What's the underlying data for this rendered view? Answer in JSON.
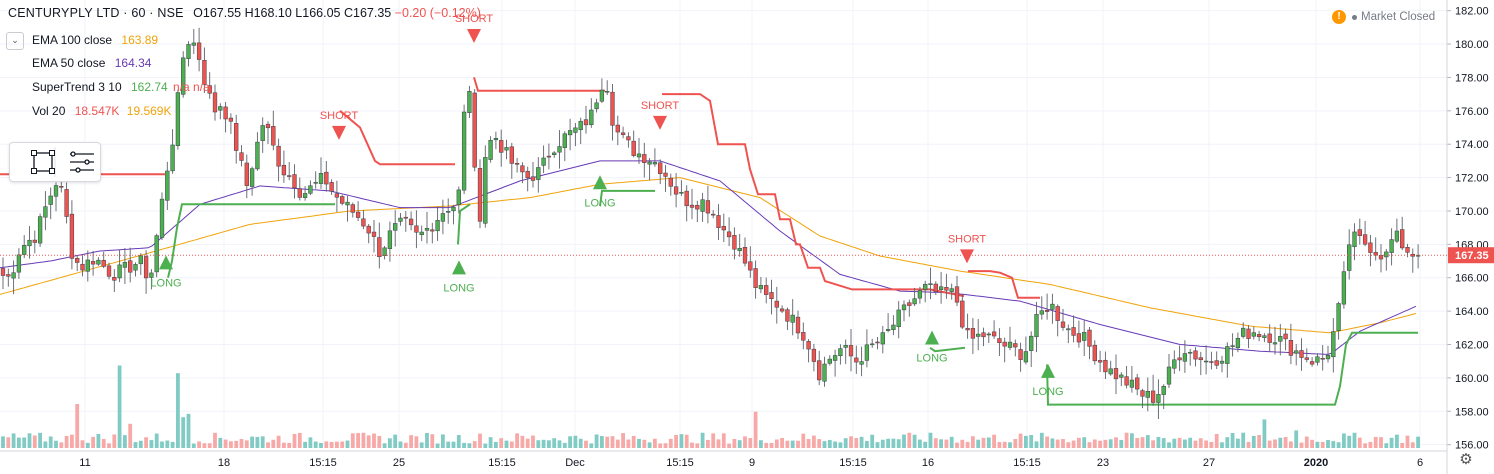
{
  "header": {
    "symbol": "CENTURYPLY LTD · 60 · NSE",
    "ohlc": "O167.55 H168.10 L166.05 C167.35",
    "change": "−0.20 (−0.12%)"
  },
  "indicators": [
    {
      "name": "EMA 100 close",
      "value": "163.89",
      "value2": "",
      "color": "#f0a30a"
    },
    {
      "name": "EMA 50 close",
      "value": "164.34",
      "value2": "",
      "color": "#673ab7"
    },
    {
      "name": "SuperTrend 3 10",
      "value": "162.74",
      "value2": "n/a n/a",
      "color": "#4caf50"
    },
    {
      "name": "Vol 20",
      "value": "18.547K",
      "value2": "19.569K",
      "color": "#ef5350"
    }
  ],
  "market_status": "Market Closed",
  "colors": {
    "up": "#26a69a",
    "up_body": "#4caf50",
    "down": "#ef5350",
    "ema100": "#f0a30a",
    "ema50": "#673ab7",
    "st_up": "#4caf50",
    "st_down": "#ef5350"
  },
  "icons": {
    "toggle": "chevron-down-icon",
    "rect_tool": "rectangle-icon",
    "list_tool": "list-icon",
    "status": "warning-icon",
    "settings": "gear-icon"
  },
  "chart_data": {
    "type": "candlestick",
    "title": "CENTURYPLY LTD · 60 · NSE",
    "ylim": [
      155.8,
      182.4
    ],
    "y_ticks": [
      "182.00",
      "180.00",
      "178.00",
      "176.00",
      "174.00",
      "172.00",
      "170.00",
      "168.00",
      "166.00",
      "164.00",
      "162.00",
      "160.00",
      "158.00",
      "156.00"
    ],
    "last_price": "167.35",
    "x_ticks": [
      "11",
      "18",
      "15:15",
      "25",
      "15:15",
      "Dec",
      "15:15",
      "9",
      "15:15",
      "16",
      "15:15",
      "23",
      "27",
      "2020",
      "6"
    ],
    "anchors": [
      [
        0,
        166.2
      ],
      [
        10,
        166.0
      ],
      [
        20,
        167.8
      ],
      [
        35,
        168.5
      ],
      [
        48,
        170.6
      ],
      [
        58,
        172.0
      ],
      [
        64,
        170.5
      ],
      [
        72,
        167.5
      ],
      [
        80,
        166.6
      ],
      [
        95,
        167.2
      ],
      [
        112,
        166.2
      ],
      [
        125,
        166.5
      ],
      [
        140,
        167.0
      ],
      [
        150,
        165.8
      ],
      [
        158,
        169.0
      ],
      [
        167,
        172.5
      ],
      [
        175,
        175.0
      ],
      [
        182,
        179.0
      ],
      [
        190,
        180.5
      ],
      [
        198,
        179.5
      ],
      [
        206,
        177.5
      ],
      [
        214,
        176.0
      ],
      [
        222,
        176.5
      ],
      [
        232,
        174.8
      ],
      [
        240,
        173.0
      ],
      [
        247,
        171.5
      ],
      [
        255,
        173.5
      ],
      [
        264,
        175.5
      ],
      [
        272,
        174.0
      ],
      [
        282,
        172.5
      ],
      [
        292,
        172.0
      ],
      [
        302,
        171.0
      ],
      [
        314,
        171.5
      ],
      [
        324,
        172.0
      ],
      [
        334,
        171.0
      ],
      [
        344,
        170.4
      ],
      [
        356,
        169.8
      ],
      [
        368,
        169.0
      ],
      [
        380,
        167.5
      ],
      [
        392,
        168.8
      ],
      [
        404,
        169.3
      ],
      [
        418,
        168.4
      ],
      [
        432,
        169.2
      ],
      [
        446,
        170.2
      ],
      [
        458,
        170.4
      ],
      [
        465,
        176.5
      ],
      [
        470,
        177.5
      ],
      [
        478,
        168.5
      ],
      [
        486,
        173.8
      ],
      [
        495,
        174.5
      ],
      [
        505,
        173.5
      ],
      [
        515,
        172.6
      ],
      [
        528,
        172.0
      ],
      [
        540,
        172.4
      ],
      [
        552,
        173.8
      ],
      [
        566,
        174.5
      ],
      [
        580,
        175.0
      ],
      [
        592,
        175.8
      ],
      [
        600,
        177.5
      ],
      [
        606,
        178.0
      ],
      [
        614,
        175.0
      ],
      [
        624,
        174.2
      ],
      [
        636,
        173.5
      ],
      [
        648,
        173.2
      ],
      [
        658,
        172.8
      ],
      [
        668,
        172.0
      ],
      [
        678,
        171.0
      ],
      [
        690,
        170.5
      ],
      [
        702,
        170.6
      ],
      [
        712,
        170.0
      ],
      [
        722,
        169.0
      ],
      [
        734,
        168.2
      ],
      [
        746,
        166.8
      ],
      [
        756,
        165.5
      ],
      [
        766,
        164.8
      ],
      [
        778,
        164.4
      ],
      [
        790,
        163.6
      ],
      [
        802,
        162.8
      ],
      [
        812,
        161.6
      ],
      [
        818,
        160.2
      ],
      [
        830,
        161.2
      ],
      [
        842,
        161.8
      ],
      [
        856,
        161.0
      ],
      [
        870,
        161.8
      ],
      [
        884,
        162.4
      ],
      [
        898,
        163.6
      ],
      [
        912,
        164.6
      ],
      [
        926,
        165.4
      ],
      [
        940,
        165.0
      ],
      [
        950,
        165.2
      ],
      [
        958,
        164.5
      ],
      [
        966,
        162.5
      ],
      [
        972,
        162.3
      ],
      [
        982,
        162.6
      ],
      [
        996,
        162.2
      ],
      [
        1010,
        161.8
      ],
      [
        1024,
        161.4
      ],
      [
        1038,
        163.6
      ],
      [
        1050,
        164.5
      ],
      [
        1060,
        163.5
      ],
      [
        1070,
        162.8
      ],
      [
        1082,
        162.5
      ],
      [
        1094,
        161.5
      ],
      [
        1106,
        160.6
      ],
      [
        1118,
        160.1
      ],
      [
        1130,
        159.6
      ],
      [
        1142,
        159.0
      ],
      [
        1154,
        158.8
      ],
      [
        1164,
        159.6
      ],
      [
        1174,
        161.0
      ],
      [
        1184,
        161.8
      ],
      [
        1194,
        161.4
      ],
      [
        1206,
        161.0
      ],
      [
        1218,
        161.2
      ],
      [
        1230,
        161.8
      ],
      [
        1242,
        162.6
      ],
      [
        1254,
        162.8
      ],
      [
        1266,
        162.6
      ],
      [
        1278,
        162.4
      ],
      [
        1290,
        161.8
      ],
      [
        1302,
        161.4
      ],
      [
        1314,
        161.0
      ],
      [
        1326,
        161.2
      ],
      [
        1336,
        163.2
      ],
      [
        1344,
        166.0
      ],
      [
        1350,
        168.4
      ],
      [
        1358,
        168.3
      ],
      [
        1368,
        168.0
      ],
      [
        1376,
        167.6
      ],
      [
        1386,
        167.3
      ],
      [
        1394,
        168.6
      ],
      [
        1402,
        168.0
      ],
      [
        1410,
        167.5
      ],
      [
        1418,
        167.35
      ]
    ],
    "ema100_anchors": [
      [
        0,
        165.0
      ],
      [
        60,
        166.0
      ],
      [
        150,
        167.5
      ],
      [
        250,
        169.2
      ],
      [
        350,
        170.0
      ],
      [
        450,
        170.3
      ],
      [
        530,
        170.8
      ],
      [
        600,
        171.6
      ],
      [
        680,
        172.0
      ],
      [
        760,
        170.8
      ],
      [
        820,
        168.5
      ],
      [
        880,
        167.3
      ],
      [
        960,
        166.4
      ],
      [
        1050,
        165.6
      ],
      [
        1150,
        164.2
      ],
      [
        1250,
        163.1
      ],
      [
        1330,
        162.7
      ],
      [
        1380,
        163.3
      ],
      [
        1418,
        163.89
      ]
    ],
    "ema50_anchors": [
      [
        0,
        166.6
      ],
      [
        50,
        167.0
      ],
      [
        100,
        167.6
      ],
      [
        150,
        167.8
      ],
      [
        200,
        170.4
      ],
      [
        260,
        171.5
      ],
      [
        330,
        171.2
      ],
      [
        400,
        170.2
      ],
      [
        450,
        170.2
      ],
      [
        520,
        171.8
      ],
      [
        600,
        173.0
      ],
      [
        660,
        173.0
      ],
      [
        720,
        171.8
      ],
      [
        780,
        168.8
      ],
      [
        840,
        166.2
      ],
      [
        900,
        165.2
      ],
      [
        950,
        165.1
      ],
      [
        1020,
        164.6
      ],
      [
        1100,
        163.2
      ],
      [
        1180,
        162.0
      ],
      [
        1260,
        161.6
      ],
      [
        1330,
        161.4
      ],
      [
        1360,
        162.8
      ],
      [
        1390,
        163.6
      ],
      [
        1418,
        164.34
      ]
    ],
    "supertrend_down_segments": [
      [
        [
          0,
          172.2
        ],
        [
          165,
          172.2
        ]
      ],
      [
        [
          340,
          176.0
        ],
        [
          360,
          175.0
        ],
        [
          375,
          173.0
        ],
        [
          380,
          172.8
        ],
        [
          455,
          172.8
        ]
      ],
      [
        [
          474,
          178.0
        ],
        [
          478,
          177.2
        ],
        [
          605,
          177.2
        ]
      ],
      [
        [
          662,
          177.0
        ],
        [
          700,
          177.0
        ],
        [
          710,
          176.6
        ],
        [
          718,
          174.0
        ],
        [
          745,
          174.0
        ],
        [
          750,
          172.5
        ],
        [
          758,
          171.0
        ],
        [
          775,
          171.0
        ],
        [
          780,
          169.5
        ],
        [
          790,
          169.5
        ],
        [
          796,
          168.0
        ],
        [
          800,
          168.0
        ],
        [
          808,
          166.6
        ],
        [
          820,
          166.6
        ],
        [
          825,
          165.8
        ],
        [
          852,
          165.3
        ],
        [
          910,
          165.3
        ],
        [
          930,
          165.3
        ],
        [
          964,
          164.9
        ]
      ],
      [
        [
          968,
          166.4
        ],
        [
          990,
          166.4
        ],
        [
          1000,
          166.3
        ],
        [
          1012,
          166.0
        ],
        [
          1018,
          164.8
        ],
        [
          1040,
          164.8
        ]
      ]
    ],
    "supertrend_up_segments": [
      [
        [
          168,
          166.0
        ],
        [
          172,
          167.0
        ],
        [
          177,
          169.0
        ],
        [
          182,
          170.4
        ],
        [
          335,
          170.4
        ]
      ],
      [
        [
          458,
          168.0
        ],
        [
          460,
          170.0
        ],
        [
          470,
          170.4
        ]
      ],
      [
        [
          600,
          170.3
        ],
        [
          602,
          171.2
        ],
        [
          655,
          171.2
        ]
      ],
      [
        [
          930,
          161.8
        ],
        [
          935,
          161.6
        ],
        [
          965,
          161.8
        ]
      ],
      [
        [
          1047,
          160.8
        ],
        [
          1048,
          158.4
        ],
        [
          1335,
          158.4
        ],
        [
          1340,
          159.5
        ],
        [
          1346,
          162.0
        ],
        [
          1352,
          162.7
        ],
        [
          1418,
          162.7
        ]
      ]
    ],
    "signals": [
      {
        "type": "LONG",
        "x": 166,
        "price": 166.8
      },
      {
        "type": "SHORT",
        "x": 339,
        "price": 174.8
      },
      {
        "type": "LONG",
        "x": 459,
        "price": 166.5
      },
      {
        "type": "SHORT",
        "x": 474,
        "price": 180.6
      },
      {
        "type": "LONG",
        "x": 600,
        "price": 171.6
      },
      {
        "type": "SHORT",
        "x": 660,
        "price": 175.4
      },
      {
        "type": "LONG",
        "x": 932,
        "price": 162.3
      },
      {
        "type": "SHORT",
        "x": 967,
        "price": 167.4
      },
      {
        "type": "LONG",
        "x": 1048,
        "price": 160.3
      }
    ],
    "volume_spikes": [
      [
        78,
        4.0
      ],
      [
        122,
        7.5
      ],
      [
        128,
        2.2
      ],
      [
        178,
        6.8
      ],
      [
        182,
        2.8
      ],
      [
        186,
        3.1
      ],
      [
        756,
        3.3
      ],
      [
        1263,
        2.6
      ],
      [
        1298,
        1.6
      ]
    ],
    "volume_unit": "relative"
  }
}
